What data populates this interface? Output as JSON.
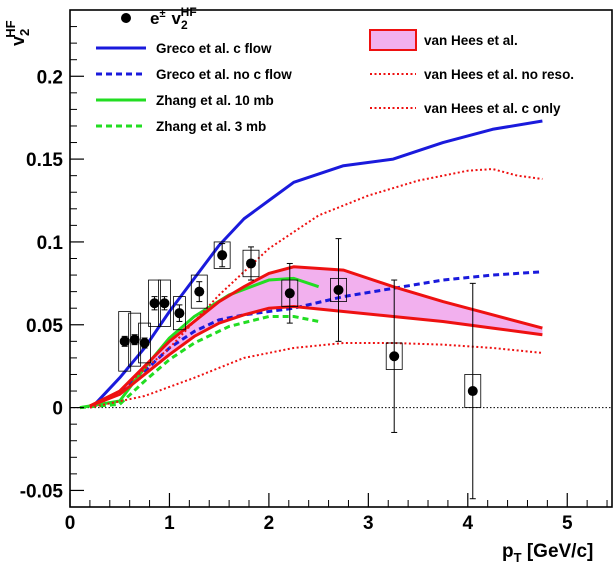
{
  "chart_data": {
    "type": "line",
    "title": "",
    "xlabel": {
      "main": "p",
      "sub": "T",
      "unit": " [GeV/c]"
    },
    "ylabel": {
      "main": "v",
      "sub": "2",
      "sup": "HF"
    },
    "xlim": [
      0,
      5.45
    ],
    "ylim": [
      -0.06,
      0.24
    ],
    "x_ticks": [
      {
        "v": 0,
        "label": "0"
      },
      {
        "v": 1,
        "label": "1"
      },
      {
        "v": 2,
        "label": "2"
      },
      {
        "v": 3,
        "label": "3"
      },
      {
        "v": 4,
        "label": "4"
      },
      {
        "v": 5,
        "label": "5"
      }
    ],
    "y_ticks": [
      {
        "v": -0.05,
        "label": "-0.05"
      },
      {
        "v": 0,
        "label": "0"
      },
      {
        "v": 0.05,
        "label": "0.05"
      },
      {
        "v": 0.1,
        "label": "0.1"
      },
      {
        "v": 0.15,
        "label": "0.15"
      },
      {
        "v": 0.2,
        "label": "0.2"
      }
    ],
    "grid": false,
    "zero_line": true,
    "legend_placement": "top",
    "data_series": {
      "name_main": "e",
      "name_sup": "±",
      "name_v": "v",
      "name_v_sub": "2",
      "name_v_sup": "HF",
      "color": "#000000",
      "points": [
        {
          "x": 0.55,
          "y": 0.04,
          "stat": 0.003,
          "sys": 0.018
        },
        {
          "x": 0.65,
          "y": 0.041,
          "stat": 0.003,
          "sys": 0.016
        },
        {
          "x": 0.75,
          "y": 0.039,
          "stat": 0.003,
          "sys": 0.012
        },
        {
          "x": 0.85,
          "y": 0.063,
          "stat": 0.004,
          "sys": 0.014
        },
        {
          "x": 0.95,
          "y": 0.063,
          "stat": 0.004,
          "sys": 0.014
        },
        {
          "x": 1.1,
          "y": 0.057,
          "stat": 0.005,
          "sys": 0.01
        },
        {
          "x": 1.3,
          "y": 0.07,
          "stat": 0.006,
          "sys": 0.01
        },
        {
          "x": 1.53,
          "y": 0.092,
          "stat": 0.007,
          "sys": 0.008
        },
        {
          "x": 1.82,
          "y": 0.087,
          "stat": 0.01,
          "sys": 0.008
        },
        {
          "x": 2.21,
          "y": 0.069,
          "stat": 0.018,
          "sys": 0.008
        },
        {
          "x": 2.7,
          "y": 0.071,
          "stat": 0.031,
          "sys": 0.007
        },
        {
          "x": 3.26,
          "y": 0.031,
          "stat": 0.046,
          "sys": 0.008
        },
        {
          "x": 4.05,
          "y": 0.01,
          "stat": 0.065,
          "sys": 0.01
        }
      ]
    },
    "series": [
      {
        "name": "Greco et al. c flow",
        "color": "#1a1adc",
        "style": "solid",
        "width": 3,
        "x": [
          0.25,
          0.5,
          0.75,
          1.0,
          1.25,
          1.5,
          1.75,
          2.0,
          2.25,
          2.75,
          3.25,
          3.75,
          4.25,
          4.75
        ],
        "y": [
          0.002,
          0.018,
          0.036,
          0.058,
          0.078,
          0.098,
          0.114,
          0.125,
          0.136,
          0.146,
          0.15,
          0.16,
          0.168,
          0.173
        ]
      },
      {
        "name": "Greco et al. no c flow",
        "color": "#1a1adc",
        "style": "dashed",
        "width": 3,
        "x": [
          0.25,
          0.5,
          0.75,
          1.0,
          1.25,
          1.5,
          1.75,
          2.0,
          2.25,
          2.75,
          3.25,
          3.75,
          4.25,
          4.75
        ],
        "y": [
          0.001,
          0.01,
          0.022,
          0.036,
          0.046,
          0.053,
          0.056,
          0.058,
          0.06,
          0.067,
          0.072,
          0.077,
          0.08,
          0.082
        ]
      },
      {
        "name": "Zhang et al. 10 mb",
        "color": "#22dd22",
        "style": "solid",
        "width": 3,
        "x": [
          0.1,
          0.5,
          0.75,
          1.0,
          1.25,
          1.6,
          2.0,
          2.25,
          2.5
        ],
        "y": [
          0.0,
          0.004,
          0.024,
          0.042,
          0.055,
          0.068,
          0.077,
          0.078,
          0.073
        ]
      },
      {
        "name": "Zhang et al. 3 mb",
        "color": "#22dd22",
        "style": "dashed",
        "width": 3,
        "x": [
          0.1,
          0.5,
          0.75,
          1.0,
          1.25,
          1.6,
          2.0,
          2.25,
          2.5
        ],
        "y": [
          0.0,
          0.002,
          0.016,
          0.029,
          0.039,
          0.049,
          0.055,
          0.055,
          0.052
        ]
      },
      {
        "name": "van Hees et al.",
        "color": "#ee1111",
        "style": "band",
        "fill": "#f2b0ee",
        "x": [
          0.2,
          0.5,
          0.75,
          1.0,
          1.25,
          1.5,
          1.75,
          2.0,
          2.25,
          2.75,
          3.25,
          3.75,
          4.25,
          4.75
        ],
        "y_upper": [
          0.001,
          0.01,
          0.025,
          0.04,
          0.052,
          0.064,
          0.073,
          0.081,
          0.085,
          0.083,
          0.073,
          0.064,
          0.056,
          0.048
        ],
        "y_lower": [
          0.001,
          0.008,
          0.02,
          0.032,
          0.043,
          0.051,
          0.056,
          0.06,
          0.061,
          0.058,
          0.055,
          0.052,
          0.048,
          0.044
        ]
      },
      {
        "name": "van Hees et al. no reso.",
        "color": "#ee1111",
        "style": "dotted",
        "width": 2,
        "x": [
          0.2,
          0.75,
          1.25,
          1.75,
          2.25,
          2.75,
          3.25,
          3.75,
          4.25,
          4.75
        ],
        "y": [
          0.0,
          0.007,
          0.018,
          0.03,
          0.036,
          0.039,
          0.039,
          0.038,
          0.036,
          0.033
        ]
      },
      {
        "name": "van Hees et al. c only",
        "color": "#ee1111",
        "style": "dotted",
        "width": 2,
        "x": [
          0.2,
          0.5,
          1.0,
          1.5,
          2.0,
          2.5,
          3.0,
          3.5,
          4.0,
          4.25,
          4.5,
          4.75
        ],
        "y": [
          0.001,
          0.01,
          0.036,
          0.068,
          0.096,
          0.116,
          0.128,
          0.137,
          0.143,
          0.144,
          0.14,
          0.138
        ]
      }
    ]
  }
}
